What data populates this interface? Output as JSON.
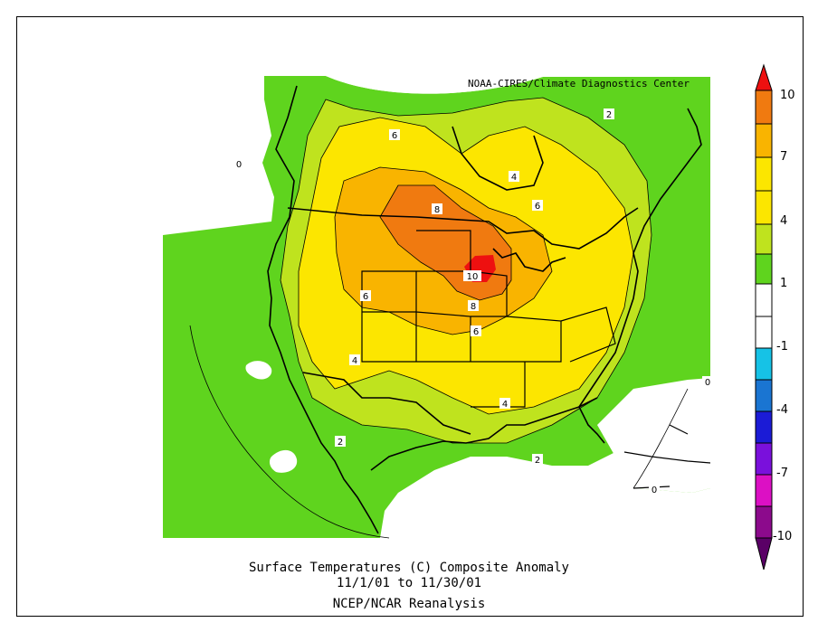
{
  "credit": "NOAA-CIRES/Climate Diagnostics Center",
  "caption": {
    "line1": "Surface Temperatures (C)   Composite Anomaly",
    "line2": "11/1/01  to 11/30/01",
    "line3": "NCEP/NCAR Reanalysis"
  },
  "colorbar": {
    "labels": [
      "10",
      "7",
      "4",
      "1",
      "-1",
      "-4",
      "-7",
      "-10"
    ],
    "colors": {
      "top_tip": "#ee1010",
      "band_7_10": "#f07a10",
      "band_4_7": "#f9b400",
      "band_2_4": "#fce600",
      "band_1_2": "#bfe31e",
      "band_0_1": "#5fd41e",
      "band_n1_0": "#ffffff",
      "band_n2_n1": "#ffffff",
      "band_n4_n2": "#16c2e6",
      "band_n5_n4": "#1a75d2",
      "band_n7_n5": "#1b1bd6",
      "band_n8_n7": "#7a10dc",
      "band_n10_n8": "#dc10c4",
      "bottom": "#8c0a8c",
      "bottom_tip": "#5a0066"
    }
  },
  "map_fill": {
    "c0_2": "#5fd41e",
    "c2_4": "#bfe31e",
    "c4_6": "#fce600",
    "c6_8": "#f9b400",
    "c8_10": "#f07a10",
    "c10": "#ee1010"
  },
  "contour_labels": [
    "0",
    "2",
    "2",
    "2",
    "4",
    "4",
    "4",
    "6",
    "6",
    "6",
    "6",
    "8",
    "8",
    "10",
    "0",
    "0"
  ]
}
